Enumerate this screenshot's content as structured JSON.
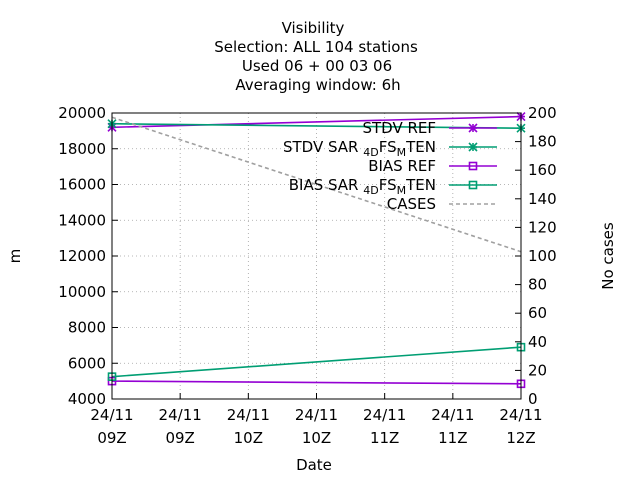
{
  "chart_data": {
    "type": "line",
    "title": [
      "Visibility",
      "Selection: ALL     104 stations",
      "Used  06  + 00 03 06",
      "Averaging window:  6h"
    ],
    "xlabel": "Date",
    "ylabel": "m",
    "y2label": "No cases",
    "x_ticks": [
      {
        "top": "24/11",
        "bottom": "09Z"
      },
      {
        "top": "24/11",
        "bottom": "09Z"
      },
      {
        "top": "24/11",
        "bottom": "10Z"
      },
      {
        "top": "24/11",
        "bottom": "10Z"
      },
      {
        "top": "24/11",
        "bottom": "11Z"
      },
      {
        "top": "24/11",
        "bottom": "11Z"
      },
      {
        "top": "24/11",
        "bottom": "12Z"
      }
    ],
    "x_range_hours": [
      8.5,
      12.0
    ],
    "ylim": [
      4000,
      20000
    ],
    "y_ticks": [
      4000,
      6000,
      8000,
      10000,
      12000,
      14000,
      16000,
      18000,
      20000
    ],
    "y2lim": [
      0,
      200
    ],
    "y2_ticks": [
      0,
      20,
      40,
      60,
      80,
      100,
      120,
      140,
      160,
      180,
      200
    ],
    "grid": true,
    "legend_position": "top-right",
    "series": [
      {
        "name": "STDV REF",
        "axis": "y",
        "color": "#9400d3",
        "marker": "cross-star",
        "dash": "none",
        "x": [
          8.5,
          12.0
        ],
        "values": [
          19200,
          19800
        ]
      },
      {
        "name": "STDV SAR_4DFS_MTEN",
        "name_parts": [
          "STDV SAR",
          "4D",
          "FS",
          "M",
          "TEN"
        ],
        "axis": "y",
        "color": "#009e73",
        "marker": "cross-star",
        "dash": "none",
        "x": [
          8.5,
          12.0
        ],
        "values": [
          19400,
          19150
        ]
      },
      {
        "name": "BIAS REF",
        "axis": "y",
        "color": "#9400d3",
        "marker": "square",
        "dash": "none",
        "x": [
          8.5,
          12.0
        ],
        "values": [
          5000,
          4850
        ]
      },
      {
        "name": "BIAS SAR_4DFS_MTEN",
        "name_parts": [
          "BIAS SAR",
          "4D",
          "FS",
          "M",
          "TEN"
        ],
        "axis": "y",
        "color": "#009e73",
        "marker": "square",
        "dash": "none",
        "x": [
          8.5,
          12.0
        ],
        "values": [
          5250,
          6900
        ]
      },
      {
        "name": "CASES",
        "axis": "y2",
        "color": "#a0a0a0",
        "marker": "none",
        "dash": "dashed",
        "x": [
          8.5,
          12.0
        ],
        "values": [
          197,
          103
        ]
      }
    ]
  }
}
